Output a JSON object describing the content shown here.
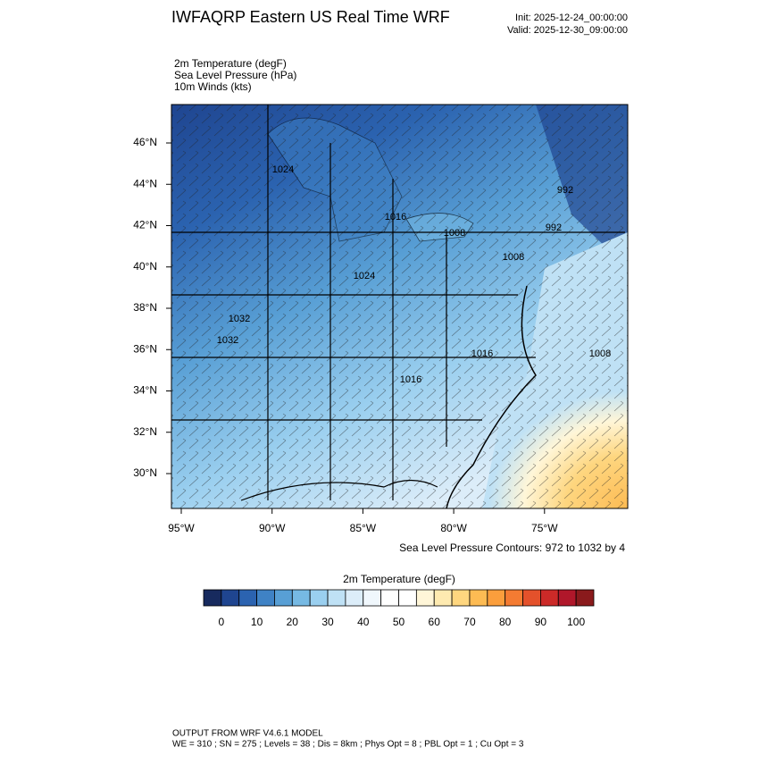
{
  "header": {
    "title": "IWFAQRP Eastern US Real Time WRF",
    "init": "Init: 2025-12-24_00:00:00",
    "valid": "Valid: 2025-12-30_09:00:00"
  },
  "fields": [
    "2m Temperature   (degF)",
    "Sea Level Pressure   (hPa)",
    "10m Winds   (kts)"
  ],
  "map": {
    "lat_labels": [
      "46°N",
      "44°N",
      "42°N",
      "40°N",
      "38°N",
      "36°N",
      "34°N",
      "32°N",
      "30°N"
    ],
    "lon_labels": [
      "95°W",
      "90°W",
      "85°W",
      "80°W",
      "75°W"
    ],
    "contour_labels": [
      "1024",
      "1016",
      "1008",
      "1008",
      "992",
      "992",
      "1024",
      "1032",
      "1032",
      "1016",
      "1016",
      "1008"
    ],
    "contour_note": "Sea Level Pressure Contours: 972 to 1032 by 4"
  },
  "colorbar": {
    "title": "2m Temperature  (degF)",
    "labels": [
      "0",
      "10",
      "20",
      "30",
      "40",
      "50",
      "60",
      "70",
      "80",
      "90",
      "100"
    ],
    "colors": [
      "#172a5e",
      "#1f4590",
      "#2b63b0",
      "#3f82c5",
      "#589fd5",
      "#76b9e3",
      "#9acfef",
      "#bfe1f5",
      "#dcedf9",
      "#f0f7fc",
      "#ffffff",
      "#ffffff",
      "#fff6d8",
      "#feeab0",
      "#fed67f",
      "#fdbb53",
      "#fb9e3c",
      "#f47b32",
      "#e4512b",
      "#cc2a28",
      "#b0172a",
      "#8a1a1c"
    ]
  },
  "footer": {
    "line1": "OUTPUT FROM WRF V4.6.1 MODEL",
    "line2": "WE = 310 ; SN = 275 ; Levels = 38 ; Dis = 8km ; Phys Opt = 8 ; PBL Opt = 1 ; Cu Opt = 3"
  }
}
